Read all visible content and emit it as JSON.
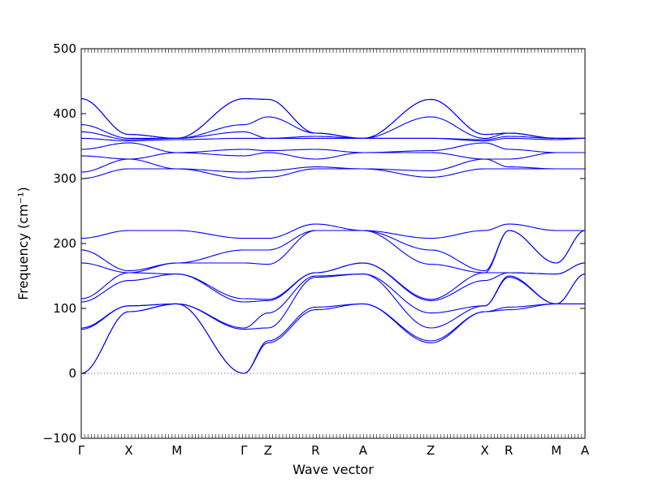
{
  "chart_data": {
    "type": "line",
    "title": "",
    "xlabel": "Wave vector",
    "ylabel": "Frequency (cm⁻¹)",
    "ylim": [
      -100,
      500
    ],
    "yticks": [
      -100,
      0,
      100,
      200,
      300,
      400,
      500
    ],
    "ytick_labels": [
      "−100",
      "0",
      "100",
      "200",
      "300",
      "400",
      "500"
    ],
    "grid": false,
    "legend": "none",
    "line_color": "#0000ff",
    "zero_line_color": "#0000ff",
    "xlim": [
      0,
      7.74
    ],
    "xticks": [
      {
        "label": "Γ",
        "x": 0.0
      },
      {
        "label": "X",
        "x": 0.73
      },
      {
        "label": "M",
        "x": 1.47
      },
      {
        "label": "Γ",
        "x": 2.5
      },
      {
        "label": "Z",
        "x": 2.87
      },
      {
        "label": "R",
        "x": 3.6
      },
      {
        "label": "A",
        "x": 4.33
      },
      {
        "label": "Z",
        "x": 5.37
      },
      {
        "label": "X",
        "x": 6.2
      },
      {
        "label": "R",
        "x": 6.57
      },
      {
        "label": "M",
        "x": 7.3
      },
      {
        "label": "A",
        "x": 7.74
      }
    ],
    "segments": [
      {
        "name": "Γ-X",
        "x0": 0.0,
        "x1": 0.73,
        "start": [
          0,
          0,
          68,
          70,
          110,
          115,
          170,
          190,
          208,
          300,
          310,
          335,
          345,
          362,
          372,
          383,
          423,
          423
        ],
        "end": [
          95,
          95,
          104,
          104,
          143,
          155,
          155,
          158,
          220,
          315,
          330,
          330,
          355,
          358,
          360,
          362,
          368,
          368
        ]
      },
      {
        "name": "X-M",
        "x0": 0.73,
        "x1": 1.47,
        "start": [
          95,
          95,
          104,
          104,
          143,
          155,
          155,
          158,
          220,
          315,
          330,
          330,
          355,
          358,
          360,
          362,
          368,
          368
        ],
        "end": [
          107,
          107,
          107,
          107,
          153,
          153,
          170,
          170,
          220,
          315,
          315,
          340,
          340,
          360,
          362,
          362,
          362,
          362
        ]
      },
      {
        "name": "M-Γ",
        "x0": 1.47,
        "x1": 2.5,
        "start": [
          107,
          107,
          107,
          107,
          153,
          153,
          170,
          170,
          220,
          315,
          315,
          340,
          340,
          360,
          362,
          362,
          362,
          362
        ],
        "end": [
          0,
          0,
          68,
          70,
          110,
          115,
          170,
          190,
          208,
          300,
          310,
          335,
          345,
          362,
          372,
          383,
          423,
          423
        ]
      },
      {
        "name": "Γ-Z",
        "x0": 2.5,
        "x1": 2.87,
        "start": [
          0,
          0,
          68,
          70,
          110,
          115,
          170,
          190,
          208,
          300,
          310,
          335,
          345,
          362,
          372,
          383,
          423,
          423
        ],
        "end": [
          47,
          50,
          70,
          93,
          112,
          114,
          168,
          190,
          208,
          302,
          312,
          340,
          343,
          362,
          362,
          395,
          422,
          422
        ]
      },
      {
        "name": "Z-R",
        "x0": 2.87,
        "x1": 3.6,
        "start": [
          47,
          50,
          70,
          93,
          112,
          114,
          168,
          190,
          208,
          302,
          312,
          340,
          343,
          362,
          362,
          395,
          422,
          422
        ],
        "end": [
          98,
          102,
          148,
          150,
          155,
          155,
          220,
          220,
          230,
          315,
          318,
          330,
          345,
          362,
          365,
          370,
          370,
          370
        ]
      },
      {
        "name": "R-A",
        "x0": 3.6,
        "x1": 4.33,
        "start": [
          98,
          102,
          148,
          150,
          155,
          155,
          220,
          220,
          230,
          315,
          318,
          330,
          345,
          362,
          365,
          370,
          370,
          370
        ],
        "end": [
          107,
          107,
          153,
          153,
          170,
          170,
          220,
          220,
          220,
          315,
          315,
          340,
          340,
          362,
          362,
          362,
          362,
          362
        ]
      },
      {
        "name": "A-Z",
        "x0": 4.33,
        "x1": 5.37,
        "start": [
          107,
          107,
          153,
          153,
          170,
          170,
          220,
          220,
          220,
          315,
          315,
          340,
          340,
          362,
          362,
          362,
          362,
          362
        ],
        "end": [
          47,
          50,
          70,
          93,
          112,
          114,
          168,
          190,
          208,
          302,
          312,
          340,
          343,
          362,
          362,
          395,
          422,
          422
        ]
      },
      {
        "name": "Z-X",
        "x0": 5.37,
        "x1": 6.2,
        "start": [
          47,
          50,
          70,
          93,
          112,
          114,
          168,
          190,
          208,
          302,
          312,
          340,
          343,
          362,
          362,
          395,
          422,
          422
        ],
        "end": [
          95,
          95,
          104,
          104,
          143,
          155,
          155,
          158,
          220,
          315,
          330,
          330,
          355,
          358,
          360,
          362,
          368,
          368
        ]
      },
      {
        "name": "X-R",
        "x0": 6.2,
        "x1": 6.57,
        "start": [
          95,
          95,
          104,
          104,
          143,
          155,
          155,
          158,
          220,
          315,
          330,
          330,
          355,
          358,
          360,
          362,
          368,
          368
        ],
        "end": [
          98,
          102,
          148,
          150,
          155,
          155,
          220,
          220,
          230,
          315,
          318,
          330,
          345,
          362,
          365,
          370,
          370,
          370
        ]
      },
      {
        "name": "R-M",
        "x0": 6.57,
        "x1": 7.3,
        "start": [
          98,
          102,
          148,
          150,
          155,
          155,
          220,
          220,
          230,
          315,
          318,
          330,
          345,
          362,
          365,
          370,
          370,
          370
        ],
        "end": [
          107,
          107,
          107,
          107,
          153,
          153,
          170,
          170,
          220,
          315,
          315,
          340,
          340,
          360,
          362,
          362,
          362,
          362
        ]
      },
      {
        "name": "M-A",
        "x0": 7.3,
        "x1": 7.74,
        "start": [
          107,
          107,
          107,
          107,
          153,
          153,
          170,
          170,
          220,
          315,
          315,
          340,
          340,
          360,
          362,
          362,
          362,
          362
        ],
        "end": [
          107,
          107,
          153,
          153,
          170,
          170,
          220,
          220,
          220,
          315,
          315,
          340,
          340,
          362,
          362,
          362,
          362,
          362
        ]
      }
    ]
  }
}
